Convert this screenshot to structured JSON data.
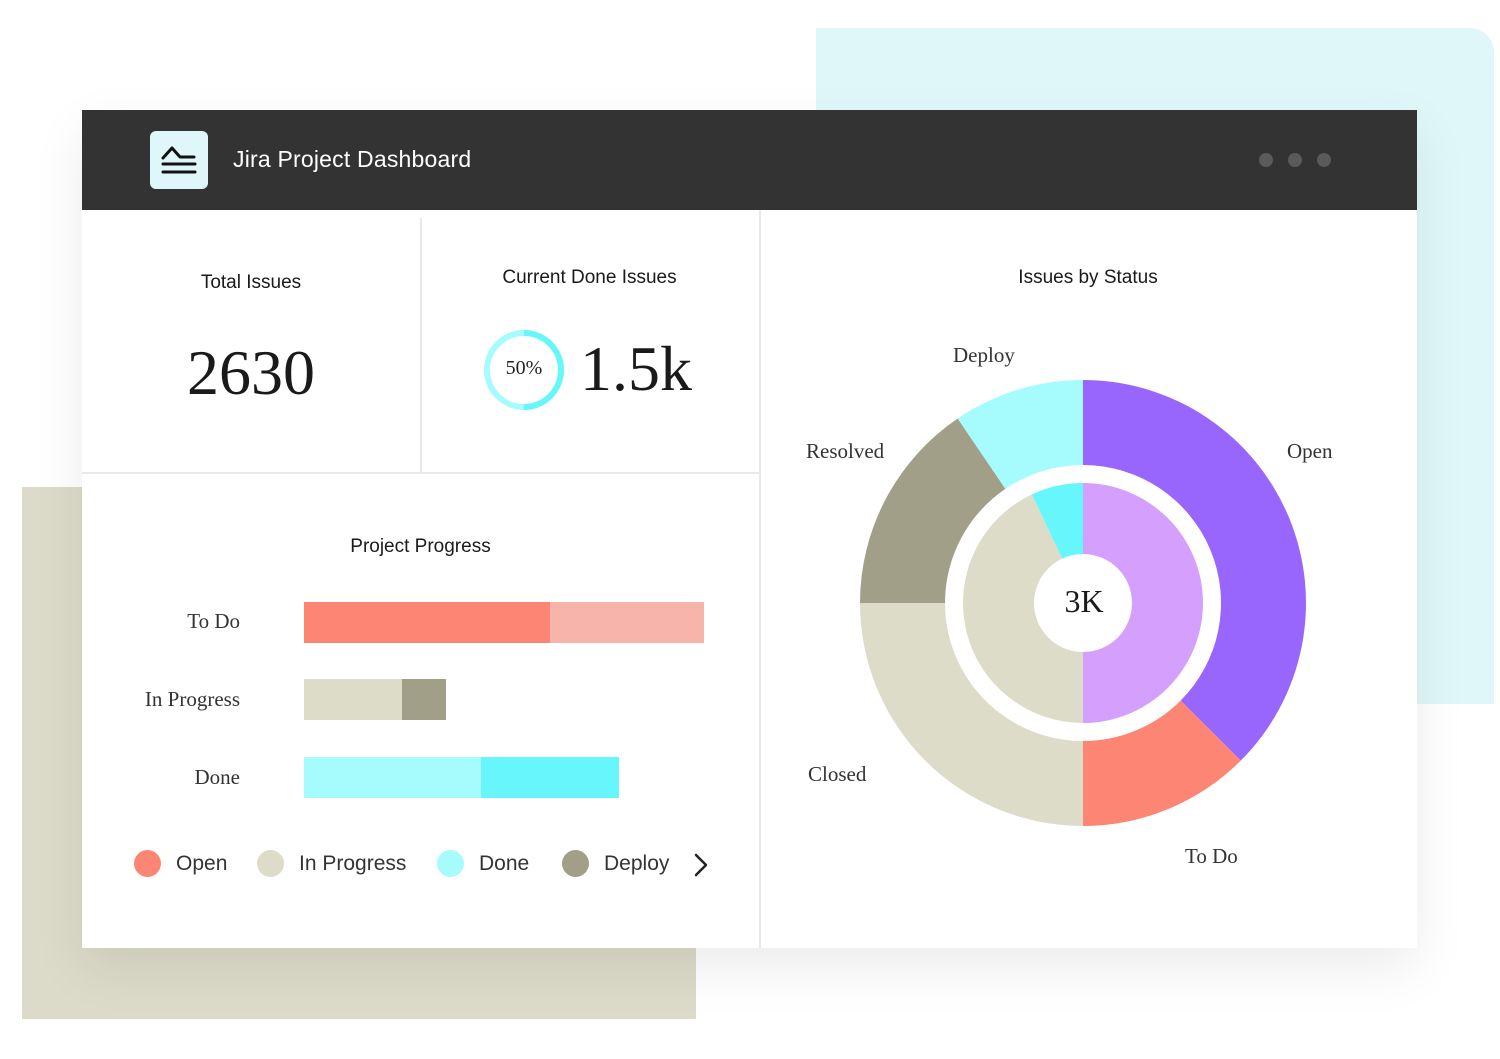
{
  "app": {
    "title": "Jira Project Dashboard",
    "logo_icon": "chart-step-icon"
  },
  "total_issues": {
    "title": "Total Issues",
    "value": "2630"
  },
  "current_done": {
    "title": "Current Done Issues",
    "percent_label": "50%",
    "percent": 0.5,
    "value": "1.5k",
    "ring_color": "#66f6fb",
    "ring_track_color": "#a6fbfd"
  },
  "project_progress": {
    "title": "Project Progress",
    "rows": [
      {
        "label": "To Do",
        "segments": [
          {
            "value": 0.615,
            "color": "#fd8573"
          },
          {
            "value": 0.385,
            "color": "#f6b4aa"
          }
        ]
      },
      {
        "label": "In Progress",
        "segments": [
          {
            "value": 0.245,
            "color": "#dddcc9"
          },
          {
            "value": 0.11,
            "color": "#a19f88"
          }
        ]
      },
      {
        "label": "Done",
        "segments": [
          {
            "value": 0.443,
            "color": "#a6fbfd"
          },
          {
            "value": 0.345,
            "color": "#66f6fb"
          }
        ]
      }
    ],
    "legend": [
      {
        "label": "Open",
        "color": "#fd8573"
      },
      {
        "label": "In Progress",
        "color": "#dddcc9"
      },
      {
        "label": "Done",
        "color": "#a6fbfd"
      },
      {
        "label": "Deploy",
        "color": "#a19f88"
      }
    ],
    "legend_next_icon": "chevron-right-icon"
  },
  "issues_by_status": {
    "title": "Issues by Status",
    "center_label": "3K",
    "labels": [
      "Deploy",
      "Open",
      "Resolved",
      "Closed",
      "To Do"
    ]
  },
  "chart_data": [
    {
      "type": "bar",
      "title": "Project Progress",
      "categories": [
        "To Do",
        "In Progress",
        "Done"
      ],
      "series": [
        {
          "values": [
            0.615,
            0.245,
            0.443
          ]
        },
        {
          "values": [
            0.385,
            0.11,
            0.345
          ]
        }
      ],
      "legend": [
        "Open",
        "In Progress",
        "Done",
        "Deploy"
      ],
      "legend_position": "bottom"
    },
    {
      "type": "pie",
      "title": "Issues by Status",
      "center_label": "3K",
      "outer": [
        {
          "name": "Open",
          "value": 37.5,
          "color": "#9966fd"
        },
        {
          "name": "To Do",
          "value": 12.5,
          "color": "#fd8573"
        },
        {
          "name": "Closed",
          "value": 25,
          "color": "#dddcc9"
        },
        {
          "name": "Resolved",
          "value": 15.5,
          "color": "#a19f88"
        },
        {
          "name": "Deploy",
          "value": 9.5,
          "color": "#a6fbfd"
        }
      ],
      "inner": [
        {
          "value": 50,
          "color": "#d5a0fd"
        },
        {
          "value": 43,
          "color": "#dddcc9"
        },
        {
          "value": 7,
          "color": "#66f6fb"
        }
      ]
    }
  ]
}
